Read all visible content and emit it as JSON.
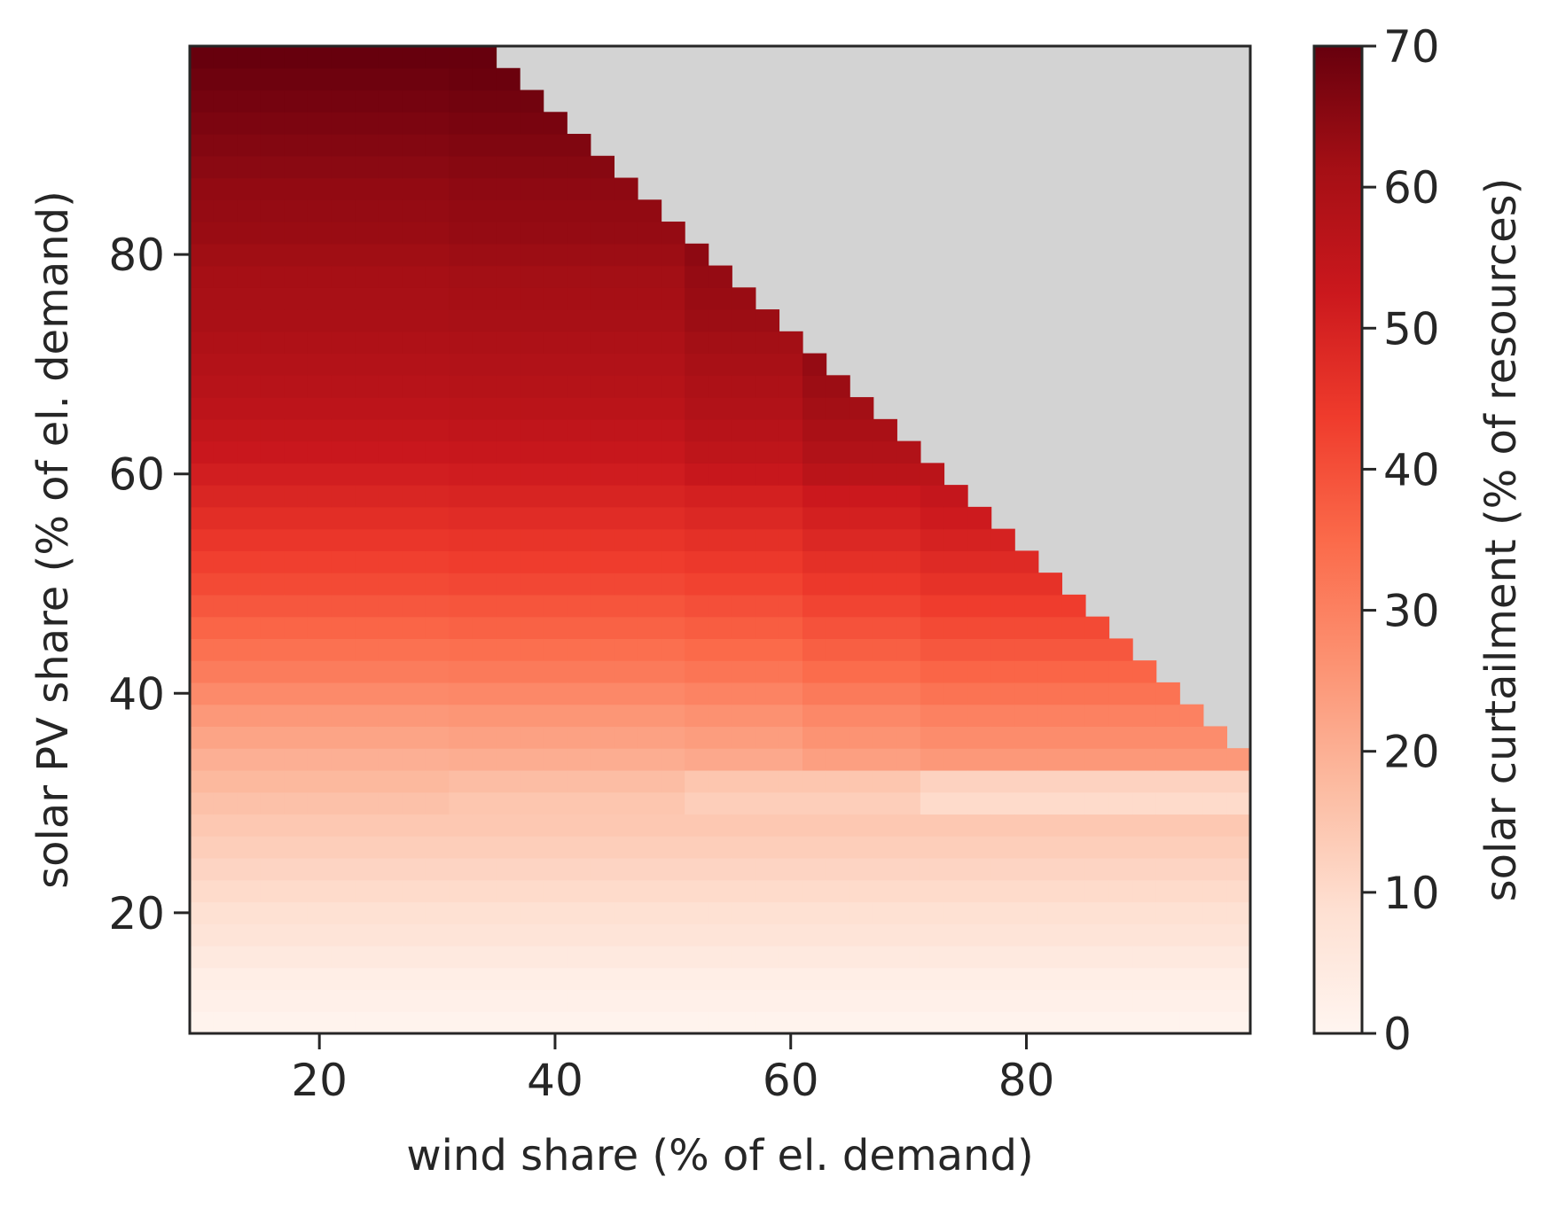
{
  "chart_data": {
    "type": "heatmap",
    "title": "",
    "xlabel": "wind share (% of el. demand)",
    "ylabel": "solar PV share (% of el. demand)",
    "xlim": [
      9,
      99
    ],
    "ylim": [
      9,
      99
    ],
    "x_ticks": [
      20,
      40,
      60,
      80
    ],
    "y_ticks": [
      20,
      40,
      60,
      80
    ],
    "grid": "off",
    "cell_size": 2,
    "missing_color": "#d3d3d3",
    "feasible_region": "wind share + solar PV share <= 130",
    "colormap": "Reds",
    "colorbar": {
      "label": "solar curtailment (% of resources)",
      "min": 0,
      "max": 70,
      "ticks": [
        0,
        10,
        20,
        30,
        40,
        50,
        60,
        70
      ]
    },
    "curtailment_by_solar_share": {
      "solar": [
        10,
        14,
        18,
        22,
        26,
        30,
        34,
        38,
        42,
        46,
        50,
        54,
        58,
        62,
        66,
        70,
        74,
        78,
        82,
        86,
        90,
        94,
        98
      ],
      "curtailment": [
        1,
        3,
        7,
        10,
        13,
        16,
        20,
        25,
        31,
        36,
        41,
        45,
        49,
        53,
        56,
        58,
        60,
        61,
        63,
        64,
        66,
        68,
        70
      ]
    },
    "wind_adjustment_by_solar_band": [
      {
        "solar_from": 30,
        "solar_to": 34,
        "wind_above_30": -1,
        "wind_above_50": -2,
        "wind_above_70": -3
      },
      {
        "solar_from": 34,
        "solar_to": 60,
        "wind_above_30": 0.5,
        "wind_above_50": 1,
        "wind_above_60": 2,
        "wind_above_70": 1.5
      },
      {
        "solar_from": 60,
        "solar_to": 99,
        "wind_above_30": 0.5,
        "wind_above_50": 2,
        "wind_above_60": 3
      }
    ]
  }
}
